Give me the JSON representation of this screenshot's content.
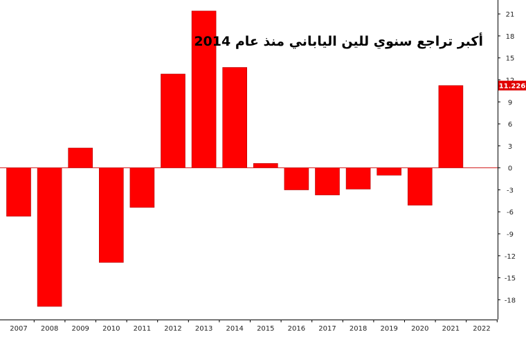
{
  "chart_data": {
    "type": "bar",
    "title": "أكبر تراجع سنوي للين الياباني منذ عام 2014",
    "xlabel": "",
    "ylabel": "",
    "categories": [
      "2007",
      "2008",
      "2009",
      "2010",
      "2011",
      "2012",
      "2013",
      "2014",
      "2015",
      "2016",
      "2017",
      "2018",
      "2019",
      "2020",
      "2021",
      "2022"
    ],
    "values": [
      -6.6,
      -18.9,
      2.7,
      -12.9,
      -5.4,
      12.8,
      21.4,
      13.7,
      0.6,
      -3.0,
      -3.7,
      -2.9,
      -1.0,
      -5.1,
      11.226,
      null
    ],
    "ylim": [
      -20.7,
      22.9
    ],
    "yticks": [
      21,
      18,
      15,
      12,
      9,
      6,
      3,
      0,
      -3,
      -6,
      -9,
      -12,
      -15,
      -18
    ],
    "last_value_label": "11.226",
    "grid": false,
    "colors": {
      "bar": "#ff0000",
      "zero_line": "#d11a1a",
      "axis": "#000000",
      "badge": "#e00000"
    }
  }
}
